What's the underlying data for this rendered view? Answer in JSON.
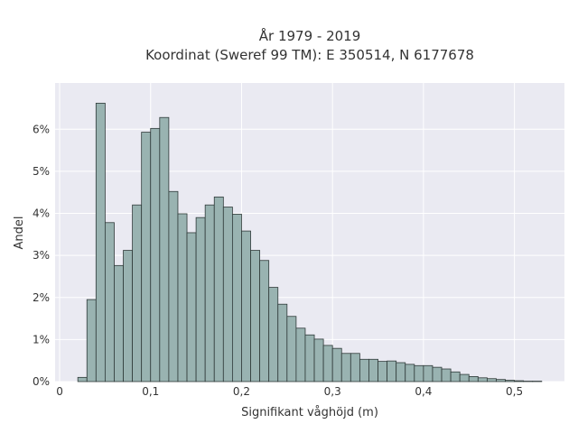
{
  "chart_data": {
    "type": "bar",
    "title_lines": [
      "År 1979 - 2019",
      "Koordinat (Sweref 99 TM): E 350514, N 6177678"
    ],
    "xlabel": "Signifikant våghöjd (m)",
    "ylabel": "Andel",
    "xlim": [
      -0.005,
      0.555
    ],
    "ylim": [
      0,
      7.1
    ],
    "x_ticks": [
      0,
      0.1,
      0.2,
      0.3,
      0.4,
      0.5
    ],
    "x_tick_labels": [
      "0",
      "0,1",
      "0,2",
      "0,3",
      "0,4",
      "0,5"
    ],
    "y_ticks": [
      0,
      1,
      2,
      3,
      4,
      5,
      6
    ],
    "y_tick_labels": [
      "0%",
      "1%",
      "2%",
      "3%",
      "4%",
      "5%",
      "6%"
    ],
    "grid": true,
    "bin_width": 0.01,
    "bin_starts": [
      0.02,
      0.03,
      0.04,
      0.05,
      0.06,
      0.07,
      0.08,
      0.09,
      0.1,
      0.11,
      0.12,
      0.13,
      0.14,
      0.15,
      0.16,
      0.17,
      0.18,
      0.19,
      0.2,
      0.21,
      0.22,
      0.23,
      0.24,
      0.25,
      0.26,
      0.27,
      0.28,
      0.29,
      0.3,
      0.31,
      0.32,
      0.33,
      0.34,
      0.35,
      0.36,
      0.37,
      0.38,
      0.39,
      0.4,
      0.41,
      0.42,
      0.43,
      0.44,
      0.45,
      0.46,
      0.47,
      0.48,
      0.49,
      0.5,
      0.51,
      0.52
    ],
    "values": [
      0.1,
      1.95,
      6.62,
      3.78,
      2.76,
      3.12,
      4.2,
      5.93,
      6.02,
      6.28,
      4.52,
      3.99,
      3.54,
      3.9,
      4.2,
      4.39,
      4.15,
      3.98,
      3.58,
      3.12,
      2.88,
      2.24,
      1.84,
      1.55,
      1.27,
      1.11,
      1.01,
      0.86,
      0.79,
      0.67,
      0.67,
      0.53,
      0.53,
      0.48,
      0.49,
      0.45,
      0.41,
      0.38,
      0.38,
      0.34,
      0.3,
      0.23,
      0.17,
      0.12,
      0.09,
      0.07,
      0.05,
      0.03,
      0.02,
      0.01,
      0.01
    ],
    "colors": {
      "bar_fill": "#99b3b1",
      "bar_edge": "#2f3a39",
      "plot_bg": "#eaeaf2",
      "grid": "#ffffff"
    }
  }
}
